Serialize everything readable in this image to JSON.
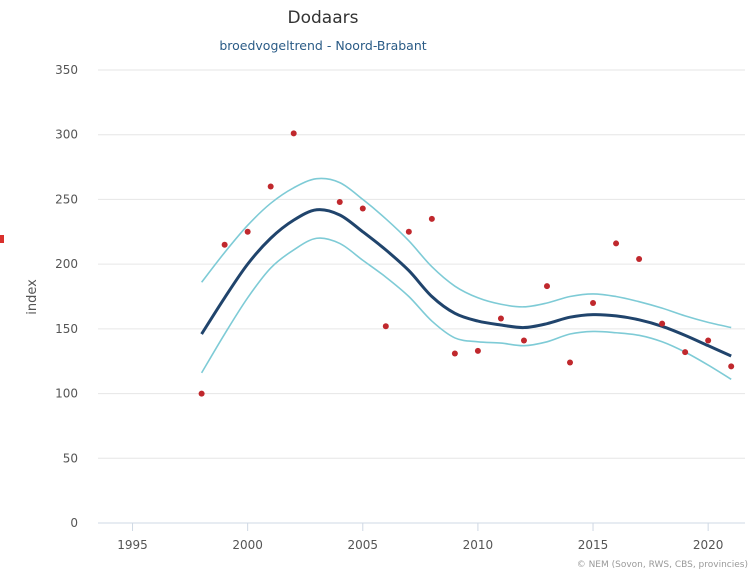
{
  "chart_data": {
    "type": "line",
    "title": "Dodaars",
    "subtitle": "broedvogeltrend - Noord-Brabant",
    "xlabel": "",
    "ylabel": "index",
    "xlim": [
      1993.5,
      2021.6
    ],
    "ylim": [
      0,
      350
    ],
    "x_ticks": [
      1995,
      2000,
      2005,
      2010,
      2015,
      2020
    ],
    "y_ticks": [
      0,
      50,
      100,
      150,
      200,
      250,
      300,
      350
    ],
    "grid": "horizontal",
    "x": [
      1998,
      1999,
      2000,
      2001,
      2002,
      2003,
      2004,
      2005,
      2006,
      2007,
      2008,
      2009,
      2010,
      2011,
      2012,
      2013,
      2014,
      2015,
      2016,
      2017,
      2018,
      2019,
      2020,
      2021
    ],
    "series": [
      {
        "role": "trend",
        "values": [
          146,
          174,
          200,
          220,
          234,
          242,
          238,
          225,
          211,
          195,
          175,
          162,
          156,
          153,
          151,
          154,
          159,
          161,
          160,
          157,
          152,
          145,
          137,
          129
        ]
      },
      {
        "role": "upper-confidence-bound",
        "values": [
          186,
          209,
          230,
          247,
          259,
          266,
          263,
          250,
          235,
          218,
          198,
          183,
          174,
          169,
          167,
          170,
          175,
          177,
          175,
          171,
          166,
          160,
          155,
          151
        ]
      },
      {
        "role": "lower-confidence-bound",
        "values": [
          116,
          146,
          174,
          197,
          211,
          220,
          216,
          203,
          190,
          175,
          156,
          143,
          140,
          139,
          137,
          140,
          146,
          148,
          147,
          145,
          140,
          132,
          122,
          111
        ]
      },
      {
        "role": "annual-index-points",
        "values": [
          100,
          215,
          225,
          260,
          301,
          0,
          248,
          243,
          152,
          225,
          235,
          131,
          133,
          158,
          141,
          183,
          124,
          170,
          216,
          204,
          154,
          132,
          141,
          121
        ]
      }
    ],
    "point_years_present": [
      1998,
      1999,
      2000,
      2001,
      2002,
      2004,
      2005,
      2006,
      2007,
      2008,
      2009,
      2010,
      2011,
      2012,
      2013,
      2014,
      2015,
      2016,
      2017,
      2018,
      2019,
      2020,
      2021
    ],
    "colors": {
      "trend": "#20446c",
      "confidence": "#7ecbd6",
      "points": "#c0282d",
      "grid": "#e6e6e6",
      "axis": "#cfd8e4"
    },
    "credits": "© NEM (Sovon, RWS, CBS, provincies)"
  }
}
